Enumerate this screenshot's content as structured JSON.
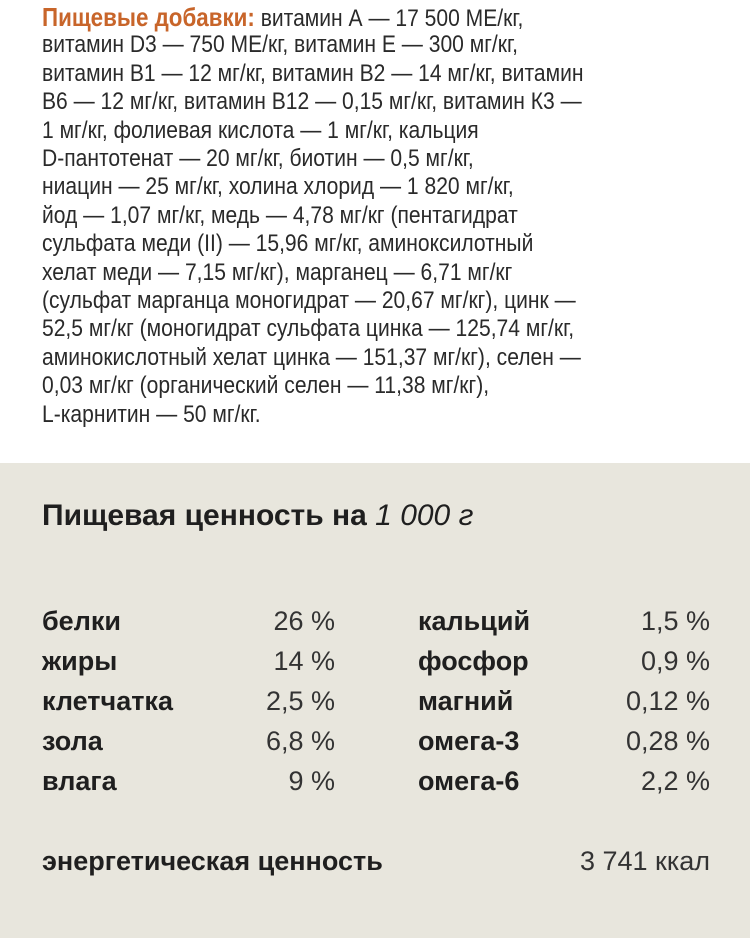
{
  "additives": {
    "label": "Пищевые добавки:",
    "lines": [
      " витамин А — 17 500 МЕ/кг,",
      "витамин D3 — 750 МЕ/кг, витамин Е — 300 мг/кг,",
      "витамин В1 — 12 мг/кг, витамин В2 — 14 мг/кг, витамин",
      "В6 — 12 мг/кг, витамин В12 — 0,15 мг/кг, витамин К3 —",
      "1 мг/кг, фолиевая кислота — 1 мг/кг, кальция",
      "D-пантотенат — 20 мг/кг, биотин — 0,5 мг/кг,",
      "ниацин — 25 мг/кг, холина хлорид — 1 820 мг/кг,",
      "йод — 1,07 мг/кг, медь — 4,78 мг/кг (пентагидрат",
      "сульфата меди (II) — 15,96 мг/кг, аминоксилотный",
      "хелат меди — 7,15 мг/кг), марганец — 6,71 мг/кг",
      "(сульфат марганца моногидрат — 20,67 мг/кг), цинк —",
      "52,5 мг/кг (моногидрат сульфата цинка — 125,74 мг/кг,",
      "аминокислотный хелат цинка — 151,37 мг/кг), селен —",
      "0,03 мг/кг (органический селен — 11,38 мг/кг),",
      "L-карнитин — 50 мг/кг."
    ]
  },
  "nutrition": {
    "title": "Пищевая ценность на ",
    "title_amount": "1 000 г",
    "left": [
      {
        "label": "белки",
        "value": "26 %"
      },
      {
        "label": "жиры",
        "value": "14 %"
      },
      {
        "label": "клетчатка",
        "value": "2,5 %"
      },
      {
        "label": "зола",
        "value": "6,8 %"
      },
      {
        "label": "влага",
        "value": "9 %"
      }
    ],
    "right": [
      {
        "label": "кальций",
        "value": "1,5 %"
      },
      {
        "label": "фосфор",
        "value": "0,9 %"
      },
      {
        "label": "магний",
        "value": "0,12 %"
      },
      {
        "label": "омега-3",
        "value": "0,28 %"
      },
      {
        "label": "омега-6",
        "value": "2,2 %"
      }
    ],
    "energy": {
      "label": "энергетическая ценность",
      "value": "3 741 ккал"
    }
  },
  "colors": {
    "accent": "#c8652a",
    "panel_bg": "#e8e6dd"
  }
}
